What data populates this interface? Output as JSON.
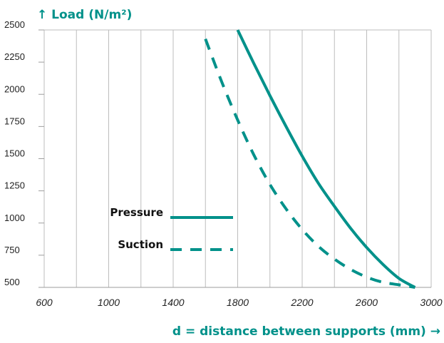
{
  "chart_data": {
    "type": "line",
    "ylabel": "↑ Load (N/m²)",
    "xlabel": "d = distance between supports (mm) →",
    "xlim": [
      600,
      3000
    ],
    "ylim": [
      500,
      2500
    ],
    "xticks": [
      600,
      1000,
      1400,
      1800,
      2200,
      2600,
      3000
    ],
    "yticks": [
      500,
      750,
      1000,
      1250,
      1500,
      1750,
      2000,
      2250,
      2500
    ],
    "grid": true,
    "legend_placement": "center-left",
    "series": [
      {
        "name": "Pressure",
        "style": "solid",
        "color": "#00918a",
        "x": [
          1800,
          1900,
          2000,
          2100,
          2200,
          2300,
          2400,
          2500,
          2600,
          2700,
          2800,
          2900
        ],
        "y": [
          2500,
          2240,
          1990,
          1750,
          1520,
          1310,
          1130,
          960,
          810,
          680,
          570,
          500
        ]
      },
      {
        "name": "Suction",
        "style": "dashed",
        "color": "#00918a",
        "x": [
          1600,
          1700,
          1800,
          1900,
          2000,
          2100,
          2200,
          2300,
          2400,
          2500,
          2600,
          2700,
          2800,
          2900
        ],
        "y": [
          2430,
          2100,
          1800,
          1530,
          1300,
          1110,
          950,
          820,
          720,
          640,
          580,
          540,
          520,
          500
        ]
      }
    ]
  }
}
